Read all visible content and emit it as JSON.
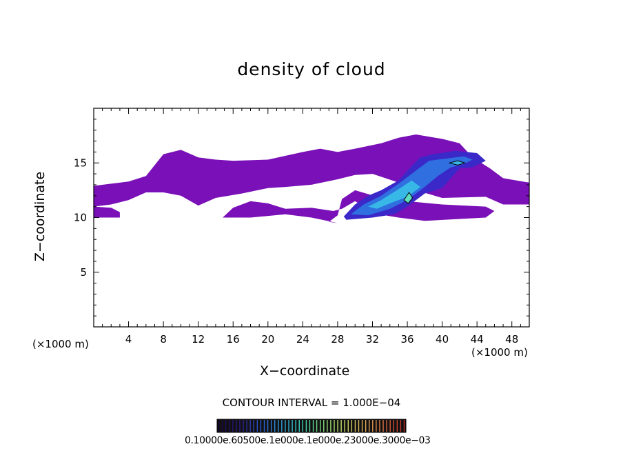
{
  "chart_data": {
    "type": "heatmap",
    "title": "density of cloud",
    "xlabel": "X−coordinate",
    "ylabel": "Z−coordinate",
    "x_unit_left": "(×1000 m)",
    "x_unit_right": "(×1000 m)",
    "xlim": [
      0,
      50
    ],
    "ylim": [
      0,
      20
    ],
    "xticks": [
      4,
      8,
      12,
      16,
      20,
      24,
      28,
      32,
      36,
      40,
      44,
      48
    ],
    "yticks": [
      5,
      10,
      15
    ],
    "contour_interval_text": "CONTOUR INTERVAL = 1.000E−04",
    "colorbar_labels_text": "0.10000e.60500e.1e000e.1e000e.23000e.3000e−03",
    "colorbar_colors": [
      "#1a0040",
      "#2a1a8a",
      "#2d55d8",
      "#2fa0e8",
      "#38d7c0",
      "#7be07a",
      "#c9e36a",
      "#e5b35a",
      "#e0703f",
      "#c82a2a"
    ],
    "colormap": [
      "#7a10b8",
      "#3a28c8",
      "#2f6fe0",
      "#38b8e6",
      "#5ee0c0"
    ],
    "regions": [
      {
        "name": "upper-anvil",
        "level": 0,
        "points": [
          [
            0,
            12.9
          ],
          [
            4,
            13.3
          ],
          [
            6,
            13.8
          ],
          [
            7,
            14.8
          ],
          [
            8,
            15.8
          ],
          [
            10,
            16.2
          ],
          [
            12,
            15.5
          ],
          [
            14,
            15.3
          ],
          [
            16,
            15.2
          ],
          [
            20,
            15.3
          ],
          [
            24,
            16.0
          ],
          [
            26,
            16.3
          ],
          [
            28,
            16.0
          ],
          [
            30,
            16.3
          ],
          [
            33,
            16.8
          ],
          [
            35,
            17.3
          ],
          [
            37,
            17.6
          ],
          [
            40,
            17.2
          ],
          [
            42,
            16.8
          ],
          [
            43.5,
            15.5
          ],
          [
            45.5,
            14.5
          ],
          [
            47,
            13.6
          ],
          [
            50,
            13.2
          ],
          [
            50,
            11.2
          ],
          [
            47,
            11.2
          ],
          [
            45,
            11.9
          ],
          [
            40,
            11.8
          ],
          [
            37,
            12.5
          ],
          [
            35,
            13.2
          ],
          [
            32,
            14.0
          ],
          [
            30,
            13.9
          ],
          [
            28,
            13.5
          ],
          [
            25,
            13.0
          ],
          [
            22,
            12.8
          ],
          [
            20,
            12.7
          ],
          [
            17,
            12.2
          ],
          [
            14,
            11.8
          ],
          [
            12,
            11.1
          ],
          [
            10,
            12.0
          ],
          [
            8,
            12.3
          ],
          [
            6,
            12.3
          ],
          [
            4,
            11.6
          ],
          [
            2,
            11.2
          ],
          [
            0,
            11.0
          ]
        ]
      },
      {
        "name": "left-lobe",
        "level": 0,
        "points": [
          [
            0,
            11.0
          ],
          [
            2,
            10.9
          ],
          [
            3,
            10.5
          ],
          [
            3,
            10.0
          ],
          [
            0,
            10.0
          ]
        ]
      },
      {
        "name": "mid-band",
        "level": 0,
        "points": [
          [
            14.8,
            10.0
          ],
          [
            16,
            10.9
          ],
          [
            18,
            11.5
          ],
          [
            20,
            11.3
          ],
          [
            22,
            10.8
          ],
          [
            25,
            10.9
          ],
          [
            27.5,
            10.6
          ],
          [
            28.5,
            10.8
          ],
          [
            30,
            11.5
          ],
          [
            31,
            11.0
          ],
          [
            32,
            10.4
          ],
          [
            35,
            10.0
          ],
          [
            38,
            9.7
          ],
          [
            45,
            10.0
          ],
          [
            46,
            10.6
          ],
          [
            45,
            11.0
          ],
          [
            40,
            11.2
          ],
          [
            36,
            11.5
          ],
          [
            33,
            11.8
          ],
          [
            30,
            12.5
          ],
          [
            28.5,
            11.7
          ],
          [
            28,
            10.2
          ],
          [
            27,
            9.6
          ],
          [
            28,
            9.5
          ],
          [
            25,
            10.0
          ],
          [
            22,
            10.3
          ],
          [
            18,
            10.0
          ]
        ]
      },
      {
        "name": "core-outer",
        "level": 1,
        "points": [
          [
            28.7,
            10.1
          ],
          [
            30,
            11.2
          ],
          [
            31.5,
            12.0
          ],
          [
            33,
            12.5
          ],
          [
            35,
            13.4
          ],
          [
            36.5,
            14.7
          ],
          [
            37.5,
            15.5
          ],
          [
            39,
            15.8
          ],
          [
            41.5,
            16.1
          ],
          [
            44,
            15.9
          ],
          [
            45,
            15.2
          ],
          [
            43.5,
            14.6
          ],
          [
            42,
            14.5
          ],
          [
            41,
            13.6
          ],
          [
            40,
            12.7
          ],
          [
            38,
            12.2
          ],
          [
            36,
            11.0
          ],
          [
            34.5,
            10.3
          ],
          [
            32,
            10.0
          ],
          [
            29,
            9.8
          ]
        ]
      },
      {
        "name": "core-mid",
        "level": 2,
        "points": [
          [
            29.5,
            10.3
          ],
          [
            31,
            11.2
          ],
          [
            33,
            12.0
          ],
          [
            35,
            13.1
          ],
          [
            37,
            14.3
          ],
          [
            38.5,
            15.2
          ],
          [
            40.5,
            15.4
          ],
          [
            42.5,
            15.6
          ],
          [
            43.5,
            15.3
          ],
          [
            42.5,
            14.9
          ],
          [
            41,
            14.6
          ],
          [
            39.5,
            13.8
          ],
          [
            38,
            12.8
          ],
          [
            36,
            11.6
          ],
          [
            34,
            10.8
          ],
          [
            31.5,
            10.2
          ]
        ]
      },
      {
        "name": "core-inner",
        "level": 3,
        "points": [
          [
            31.5,
            11.0
          ],
          [
            33,
            11.6
          ],
          [
            35,
            12.6
          ],
          [
            36.5,
            13.4
          ],
          [
            37.5,
            12.8
          ],
          [
            36,
            11.9
          ],
          [
            34,
            11.3
          ],
          [
            32.5,
            10.8
          ]
        ]
      },
      {
        "name": "core-peak",
        "level": 4,
        "points": [
          [
            35.6,
            11.6
          ],
          [
            36.2,
            12.3
          ],
          [
            36.6,
            11.8
          ],
          [
            36.1,
            11.3
          ]
        ]
      },
      {
        "name": "upper-peak",
        "level": 3,
        "points": [
          [
            40.8,
            15.0
          ],
          [
            41.8,
            15.2
          ],
          [
            42.6,
            15.0
          ],
          [
            41.8,
            14.8
          ]
        ]
      }
    ],
    "contour_lines": [
      {
        "name": "contour-core",
        "points": [
          [
            35.6,
            11.6
          ],
          [
            36.2,
            12.3
          ],
          [
            36.6,
            11.8
          ],
          [
            36.1,
            11.3
          ]
        ]
      },
      {
        "name": "contour-upper",
        "points": [
          [
            40.8,
            15.0
          ],
          [
            41.8,
            15.2
          ],
          [
            42.6,
            15.0
          ],
          [
            41.8,
            14.8
          ]
        ]
      }
    ]
  }
}
